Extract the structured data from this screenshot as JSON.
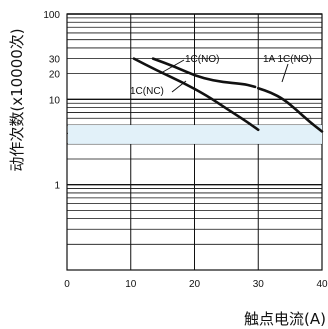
{
  "chart_data": {
    "type": "line",
    "title": "",
    "xlabel": "触点电流(A)",
    "ylabel": "动作次数(x10000次)",
    "xlim": [
      0,
      40
    ],
    "ylim": [
      0.1,
      100
    ],
    "yscale": "log",
    "grid": true,
    "x_ticks": [
      "0",
      "10",
      "20",
      "30",
      "40"
    ],
    "y_ticks": [
      "100",
      "30",
      "20",
      "10",
      "1"
    ],
    "series": [
      {
        "name": "1C(NO)",
        "x": [
          13.5,
          17,
          20,
          23,
          26,
          28,
          29.5
        ],
        "y": [
          30,
          24,
          19,
          16.5,
          15.5,
          15,
          14
        ]
      },
      {
        "name": "1C(NC)",
        "x": [
          10.5,
          14,
          18,
          22,
          25,
          28,
          30
        ],
        "y": [
          30,
          22,
          16,
          11,
          7.8,
          5.6,
          4.4
        ]
      },
      {
        "name": "1A 1C(NO)",
        "x": [
          30,
          32,
          34,
          36,
          38,
          40
        ],
        "y": [
          13.5,
          12,
          10,
          7.5,
          5.5,
          4.2
        ]
      }
    ],
    "annotations": [
      "1C(NO)",
      "1C(NC)",
      "1A 1C(NO)"
    ]
  }
}
